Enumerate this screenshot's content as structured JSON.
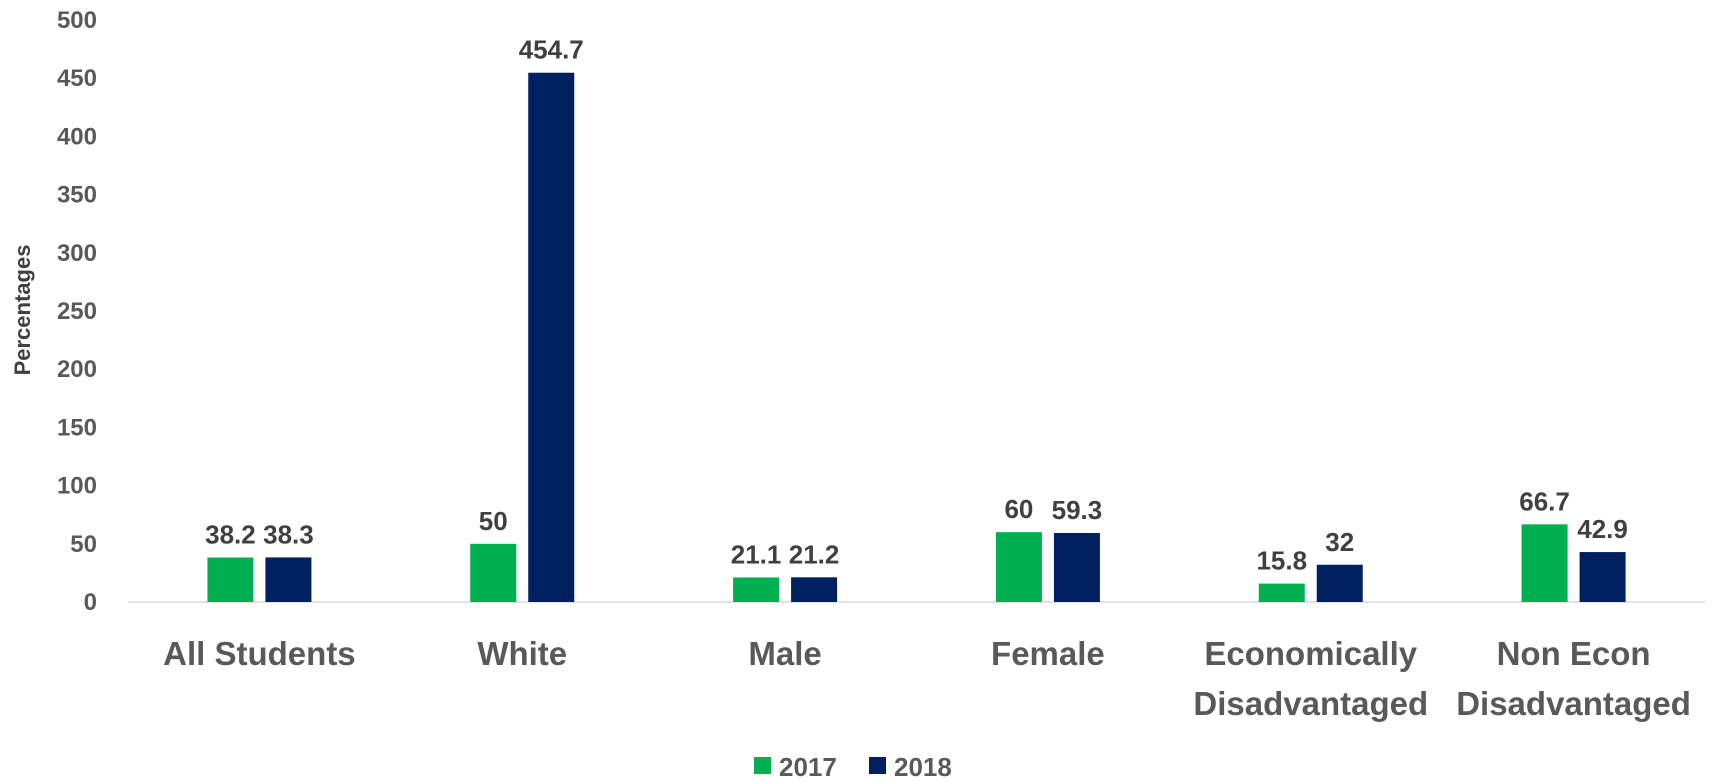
{
  "chart_data": {
    "type": "bar",
    "title": "",
    "xlabel": "",
    "ylabel": "Percentages",
    "categories": [
      [
        "All Students"
      ],
      [
        "White"
      ],
      [
        "Male"
      ],
      [
        "Female"
      ],
      [
        "Economically",
        "Disadvantaged"
      ],
      [
        "Non Econ",
        "Disadvantaged"
      ]
    ],
    "series": [
      {
        "name": "2017",
        "color": "#00b050",
        "values": [
          38.2,
          50,
          21.1,
          60,
          15.8,
          66.7
        ]
      },
      {
        "name": "2018",
        "color": "#002060",
        "values": [
          38.3,
          454.7,
          21.2,
          59.3,
          32,
          42.9
        ]
      }
    ],
    "ylim": [
      0,
      500
    ],
    "yticks": [
      0,
      50,
      100,
      150,
      200,
      250,
      300,
      350,
      400,
      450,
      500
    ],
    "grid": false,
    "legend": "bottom"
  }
}
